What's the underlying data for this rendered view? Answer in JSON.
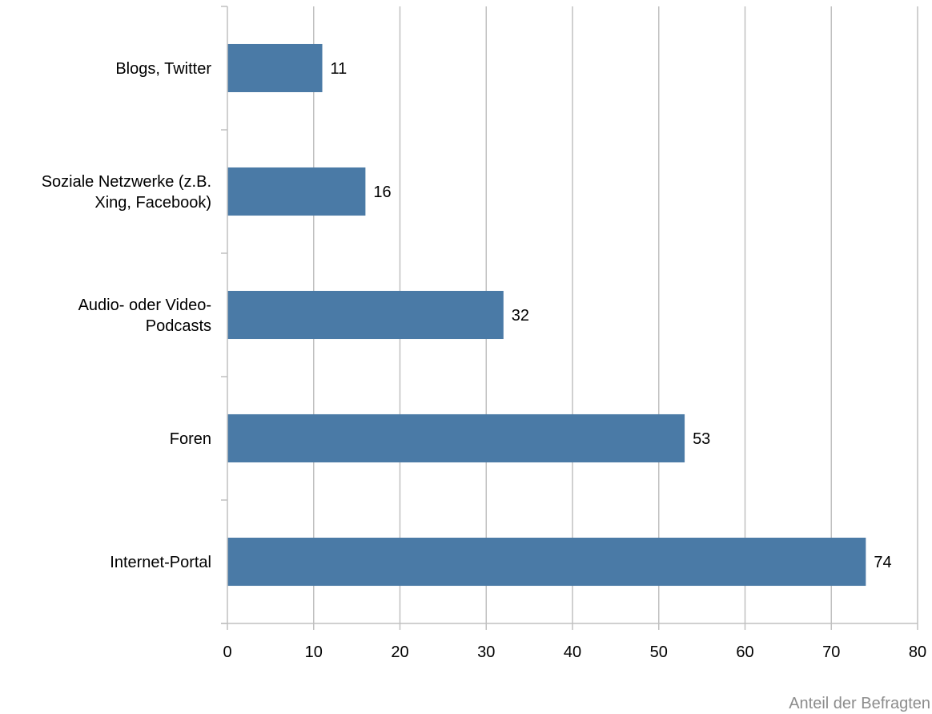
{
  "chart_data": {
    "type": "bar",
    "orientation": "horizontal",
    "categories": [
      [
        "Blogs, Twitter"
      ],
      [
        "Soziale Netzwerke (z.B.",
        "Xing, Facebook)"
      ],
      [
        "Audio- oder Video-",
        "Podcasts"
      ],
      [
        "Foren"
      ],
      [
        "Internet-Portal"
      ]
    ],
    "values": [
      11,
      16,
      32,
      53,
      74
    ],
    "value_labels": [
      "11",
      "16",
      "32",
      "53",
      "74"
    ],
    "xlabel": "Anteil der Befragten",
    "ylabel": "",
    "xlim": [
      0,
      80
    ],
    "x_ticks": [
      0,
      10,
      20,
      30,
      40,
      50,
      60,
      70,
      80
    ],
    "grid": "vertical",
    "bar_color": "#4a7aa6",
    "grid_color": "#c0c0c0",
    "xlabel_color": "#8c8c8c"
  }
}
